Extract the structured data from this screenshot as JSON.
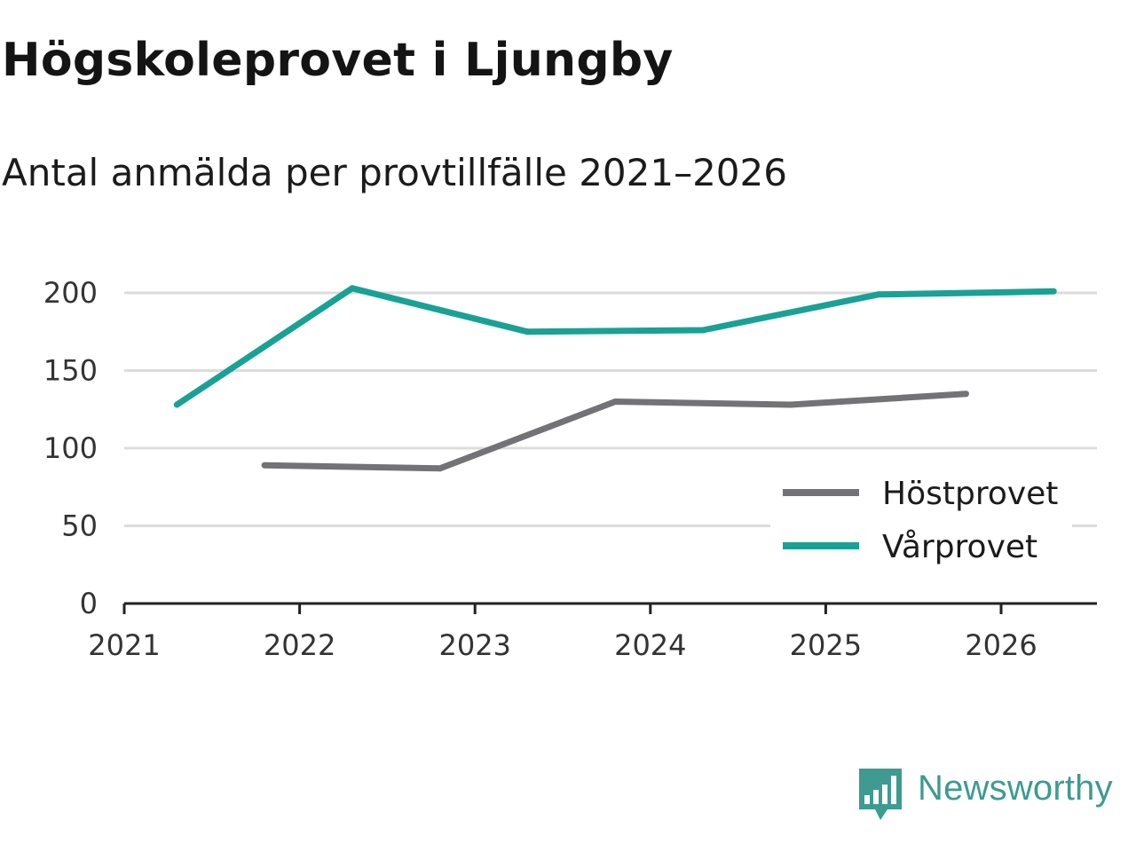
{
  "title": "Högskoleprovet i Ljungby",
  "subtitle": "Antal anmälda per provtillfälle 2021–2026",
  "brand": {
    "name": "Newsworthy",
    "icon": "newsworthy-logo-icon",
    "color": "#3d9b92"
  },
  "chart_data": {
    "type": "line",
    "title": "Högskoleprovet i Ljungby",
    "subtitle": "Antal anmälda per provtillfälle 2021–2026",
    "xlabel": "",
    "ylabel": "",
    "xlim": [
      2021,
      2026.6
    ],
    "ylim": [
      0,
      200
    ],
    "x_ticks": [
      "2021",
      "2022",
      "2023",
      "2024",
      "2025",
      "2026"
    ],
    "y_ticks": [
      "0",
      "50",
      "100",
      "150",
      "200"
    ],
    "grid": true,
    "legend": {
      "position": "bottom-right"
    },
    "series": [
      {
        "name": "Höstprovet",
        "color": "#737277",
        "x": [
          2021.8,
          2022.8,
          2023.8,
          2024.8,
          2025.8
        ],
        "values": [
          89,
          87,
          130,
          128,
          135
        ]
      },
      {
        "name": "Vårprovet",
        "color": "#1aa195",
        "x": [
          2021.3,
          2022.3,
          2023.3,
          2024.3,
          2025.3,
          2026.3
        ],
        "values": [
          128,
          203,
          175,
          176,
          199,
          201
        ]
      }
    ]
  }
}
